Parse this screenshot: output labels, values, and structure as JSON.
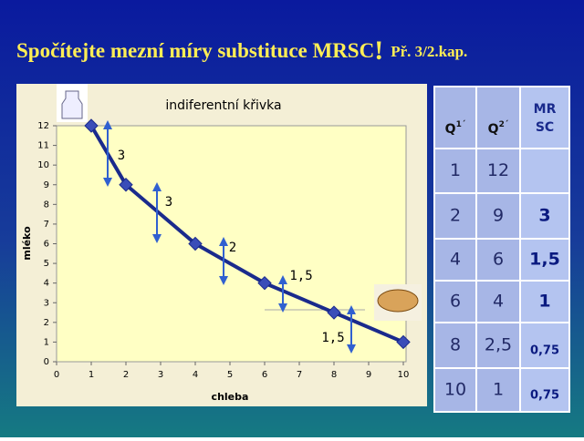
{
  "header": {
    "title": "Spočítejte mezní míry substituce MRSC",
    "exclaim": "!",
    "subtitle": "Př. 3/2.kap."
  },
  "chart_data": {
    "type": "line",
    "title": "indiferentní křivka",
    "x_label": "chleba",
    "y_label": "mléko",
    "x": [
      1,
      2,
      4,
      6,
      8,
      10
    ],
    "series": [
      {
        "color": "#1a2a8c",
        "values": [
          12,
          9,
          6,
          4,
          2.5,
          1
        ]
      }
    ],
    "xlim": [
      0,
      10
    ],
    "xticks": [
      0,
      1,
      2,
      3,
      4,
      5,
      6,
      7,
      8,
      9,
      10
    ],
    "ylim": [
      0,
      12
    ],
    "yticks": [
      0,
      1,
      2,
      3,
      4,
      5,
      6,
      7,
      8,
      9,
      10,
      11,
      12
    ],
    "grid": false,
    "annotations": [
      "3",
      "3",
      "2",
      "1,5",
      "1,5"
    ]
  },
  "table": {
    "headers": [
      {
        "base": "Q",
        "sup": "1´"
      },
      {
        "base": "Q",
        "sup": "2´"
      },
      {
        "lines": [
          "MR",
          "SC"
        ]
      }
    ],
    "rows": [
      [
        "1",
        "12",
        null
      ],
      [
        "2",
        "9",
        "3"
      ],
      [
        "4",
        "6",
        "1,5"
      ],
      [
        "6",
        "4",
        "1"
      ],
      [
        "8",
        "2,5",
        "0,75"
      ],
      [
        "10",
        "1",
        "0,75"
      ]
    ]
  }
}
